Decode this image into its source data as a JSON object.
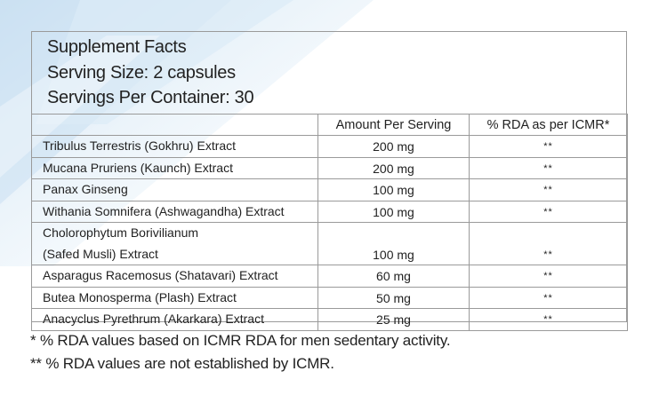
{
  "header": {
    "title": "Supplement Facts",
    "serving_size": "Serving Size: 2 capsules",
    "servings_per_container": "Servings Per Container: 30"
  },
  "table": {
    "columns": [
      "",
      "Amount Per Serving",
      "% RDA as per ICMR*"
    ],
    "rows": [
      [
        "Tribulus Terrestris (Gokhru) Extract",
        "200 mg",
        "**"
      ],
      [
        "Mucana Pruriens (Kaunch) Extract",
        "200 mg",
        "**"
      ],
      [
        "Panax Ginseng",
        "100 mg",
        "**"
      ],
      [
        "Withania Somnifera (Ashwagandha) Extract",
        "100 mg",
        "**"
      ],
      [
        "Cholorophytum Borivilianum\n(Safed Musli) Extract",
        "100 mg",
        "**"
      ],
      [
        "Asparagus Racemosus (Shatavari) Extract",
        "60 mg",
        "**"
      ],
      [
        "Butea Monosperma (Plash) Extract",
        "50 mg",
        "**"
      ],
      [
        "Anacyclus Pyrethrum (Akarkara) Extract",
        "25 mg",
        "**"
      ]
    ]
  },
  "footnotes": [
    "* % RDA values based on ICMR RDA for men sedentary activity.",
    "** % RDA values are not established by ICMR."
  ]
}
